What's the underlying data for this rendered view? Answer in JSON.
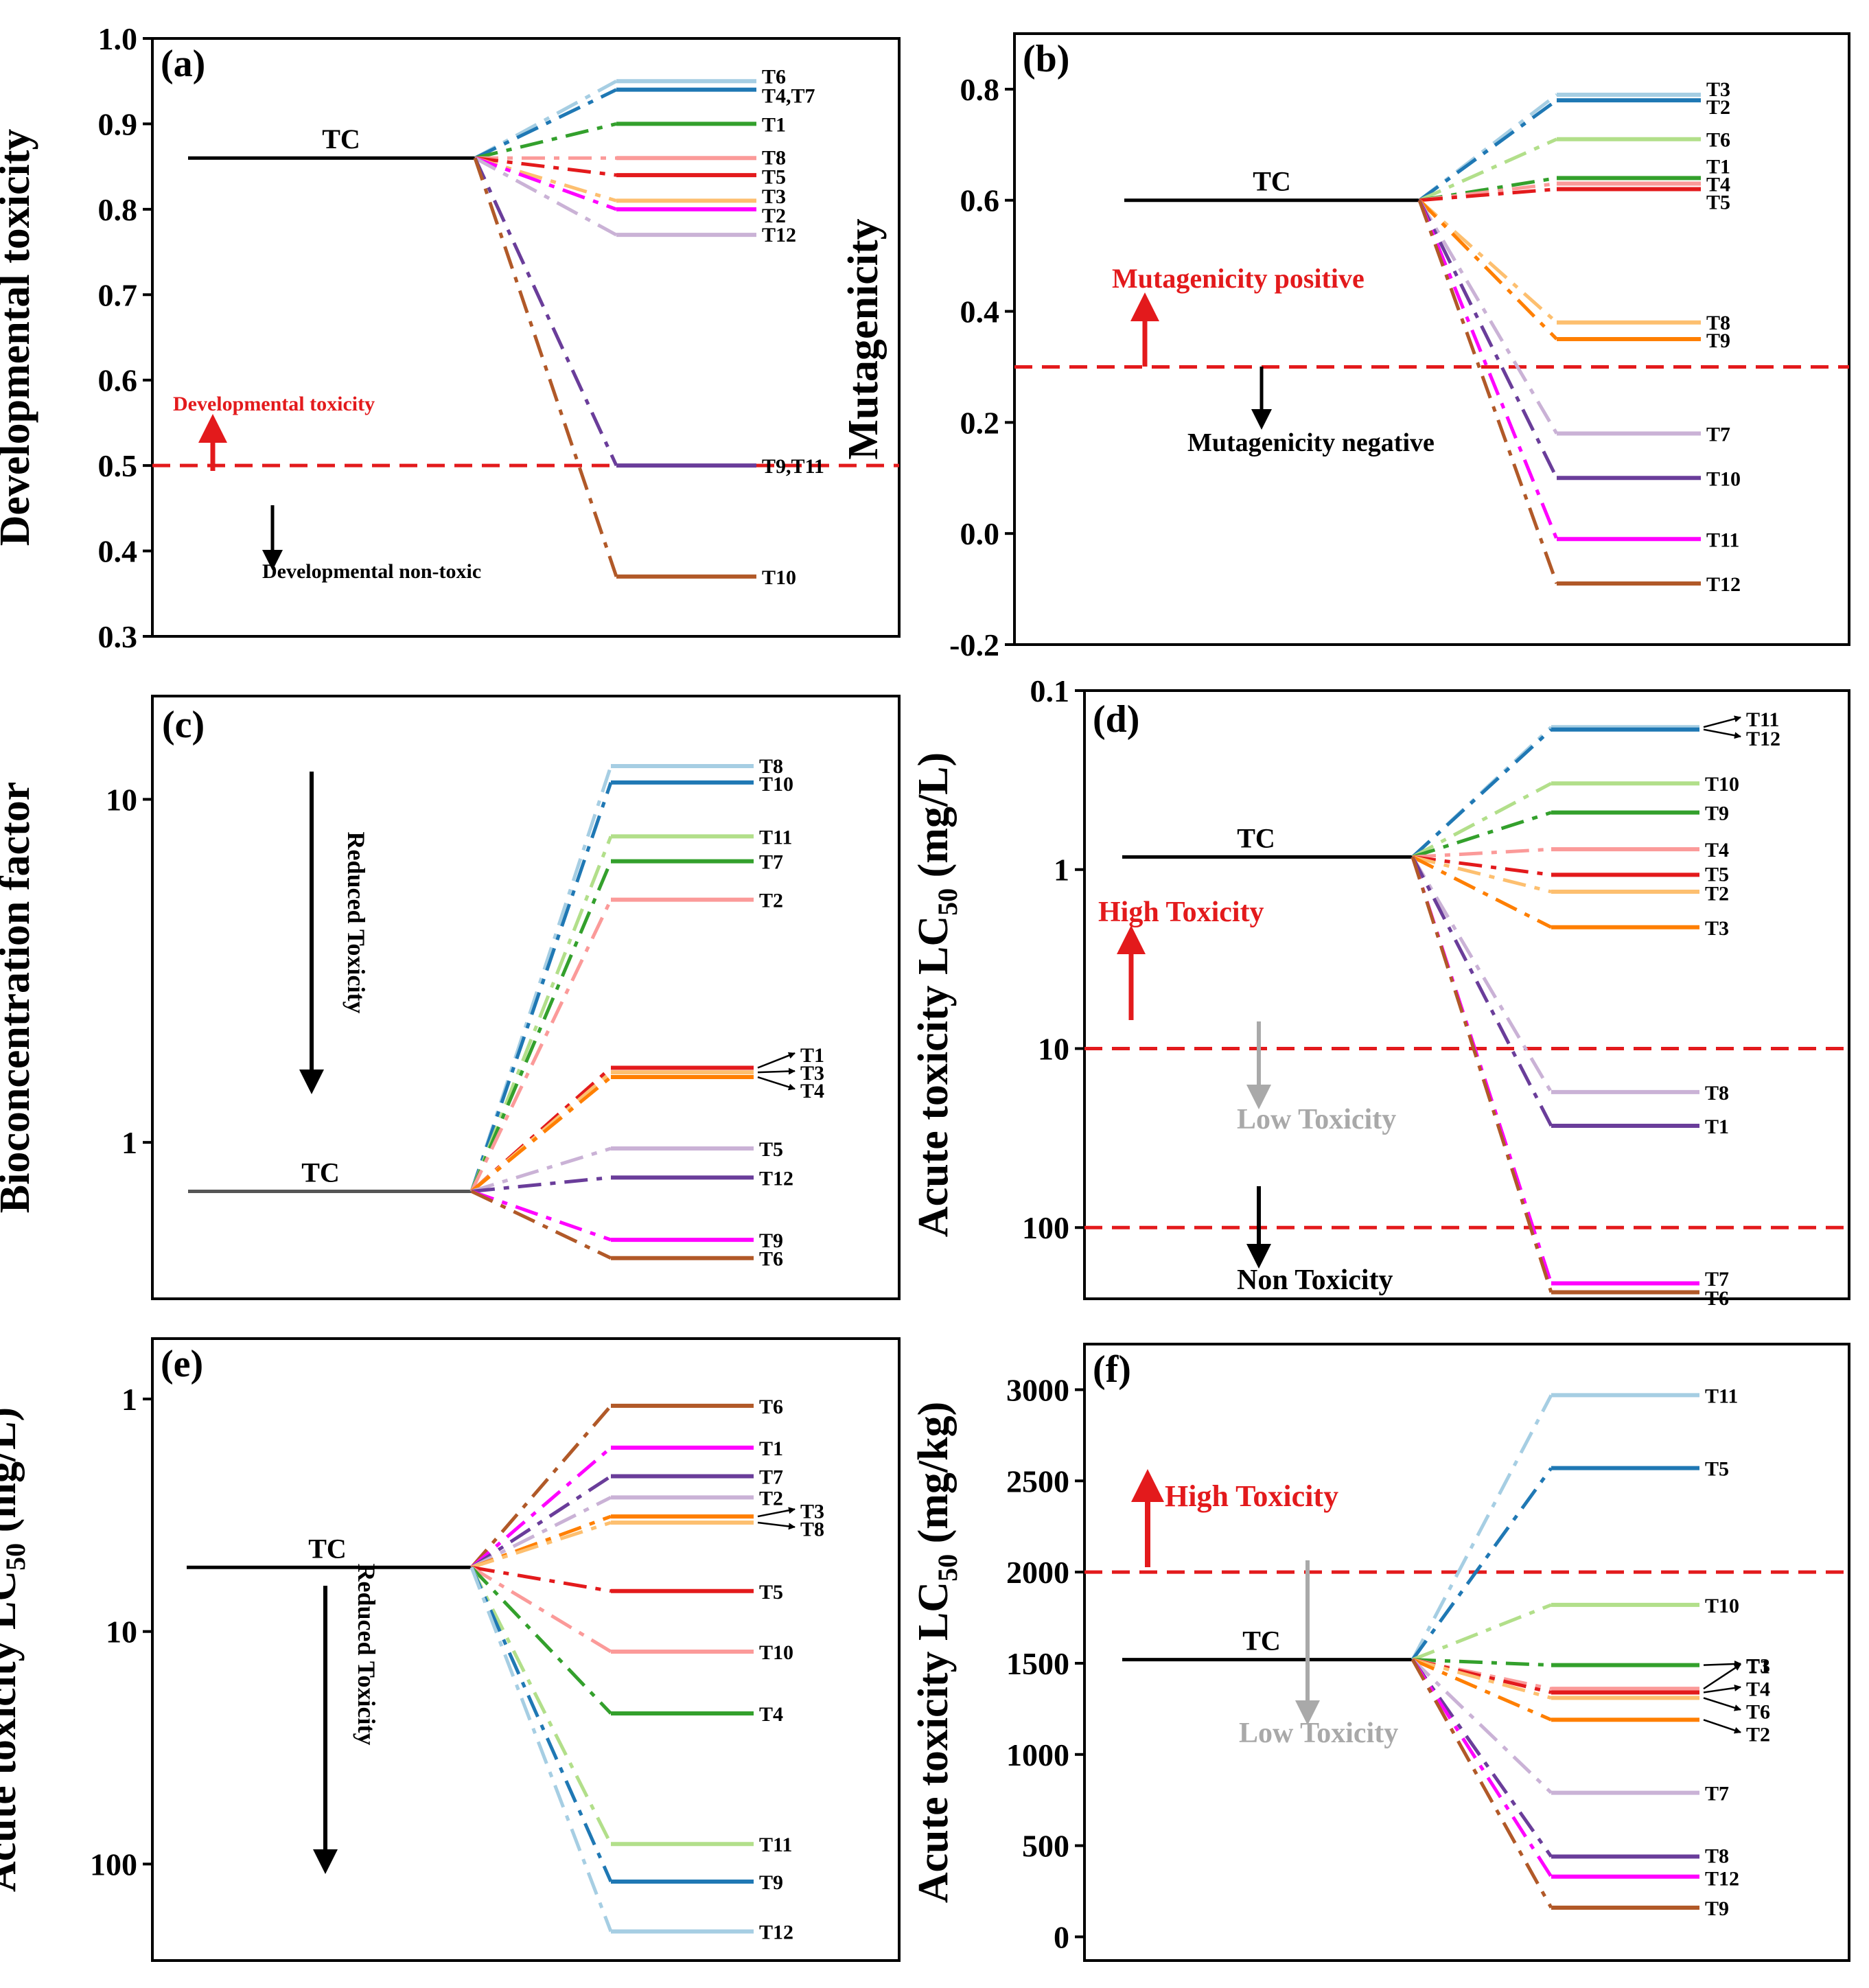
{
  "chart_data": [
    {
      "id": "a",
      "type": "line",
      "panel_label": "(a)",
      "ylabel": "Developmental toxicity",
      "scale": "linear",
      "ylim": [
        0.3,
        1.0
      ],
      "yticks": [
        0.3,
        0.4,
        0.5,
        0.6,
        0.7,
        0.8,
        0.9,
        1.0
      ],
      "ytick_labels": [
        "0.3",
        "0.4",
        "0.5",
        "0.6",
        "0.7",
        "0.8",
        "0.9",
        "1.0"
      ],
      "tc": {
        "label": "TC",
        "value": 0.86
      },
      "series": [
        {
          "name": "T6",
          "value": 0.95,
          "color": "#a6cee3"
        },
        {
          "name": "T4,T7",
          "value": 0.94,
          "color": "#1f78b4"
        },
        {
          "name": "T1",
          "value": 0.9,
          "color": "#33a02c"
        },
        {
          "name": "T8",
          "value": 0.86,
          "color": "#fb9a99"
        },
        {
          "name": "T5",
          "value": 0.84,
          "color": "#e31a1c"
        },
        {
          "name": "T3",
          "value": 0.81,
          "color": "#fdbf6f"
        },
        {
          "name": "T2",
          "value": 0.8,
          "color": "#ff00ff"
        },
        {
          "name": "T12",
          "value": 0.77,
          "color": "#cab2d6"
        },
        {
          "name": "T9,T11",
          "value": 0.5,
          "color": "#6a3d9a"
        },
        {
          "name": "T10",
          "value": 0.37,
          "color": "#b15928"
        }
      ],
      "thresholds": [
        0.5
      ],
      "annotations": [
        {
          "text": "Developmental toxicity",
          "color": "#e31a1c",
          "arrow": "up"
        },
        {
          "text": "Developmental non-toxic",
          "color": "#000000",
          "arrow": "down"
        }
      ]
    },
    {
      "id": "b",
      "type": "line",
      "panel_label": "(b)",
      "ylabel": "Mutagenicity",
      "scale": "linear",
      "ylim": [
        -0.2,
        0.9
      ],
      "yticks": [
        -0.2,
        0.0,
        0.2,
        0.4,
        0.6,
        0.8
      ],
      "ytick_labels": [
        "-0.2",
        "0.0",
        "0.2",
        "0.4",
        "0.6",
        "0.8"
      ],
      "tc": {
        "label": "TC",
        "value": 0.6
      },
      "series": [
        {
          "name": "T3",
          "value": 0.79,
          "color": "#a6cee3"
        },
        {
          "name": "T2",
          "value": 0.78,
          "color": "#1f78b4"
        },
        {
          "name": "T6",
          "value": 0.71,
          "color": "#b2df8a"
        },
        {
          "name": "T1",
          "value": 0.64,
          "color": "#33a02c"
        },
        {
          "name": "T4",
          "value": 0.63,
          "color": "#fb9a99"
        },
        {
          "name": "T5",
          "value": 0.62,
          "color": "#e31a1c"
        },
        {
          "name": "T8",
          "value": 0.38,
          "color": "#fdbf6f"
        },
        {
          "name": "T9",
          "value": 0.35,
          "color": "#ff7f00"
        },
        {
          "name": "T7",
          "value": 0.18,
          "color": "#cab2d6"
        },
        {
          "name": "T10",
          "value": 0.1,
          "color": "#6a3d9a"
        },
        {
          "name": "T11",
          "value": -0.01,
          "color": "#ff00ff"
        },
        {
          "name": "T12",
          "value": -0.09,
          "color": "#b15928"
        }
      ],
      "thresholds": [
        0.3
      ],
      "annotations": [
        {
          "text": "Mutagenicity positive",
          "color": "#e31a1c",
          "arrow": "up"
        },
        {
          "text": "Mutagenicity negative",
          "color": "#000000",
          "arrow": "down"
        }
      ]
    },
    {
      "id": "c",
      "type": "line",
      "panel_label": "(c)",
      "ylabel": "Bioconcentration factor",
      "scale": "log",
      "ylim": [
        0.35,
        20
      ],
      "yticks": [
        1,
        10
      ],
      "ytick_labels": [
        "1",
        "10"
      ],
      "tc": {
        "label": "TC",
        "value": 0.72
      },
      "series": [
        {
          "name": "T8",
          "value": 12.5,
          "color": "#a6cee3"
        },
        {
          "name": "T10",
          "value": 11.2,
          "color": "#1f78b4"
        },
        {
          "name": "T11",
          "value": 7.8,
          "color": "#b2df8a"
        },
        {
          "name": "T7",
          "value": 6.6,
          "color": "#33a02c"
        },
        {
          "name": "T2",
          "value": 5.1,
          "color": "#fb9a99"
        },
        {
          "name": "T1",
          "value": 1.65,
          "color": "#e31a1c"
        },
        {
          "name": "T3",
          "value": 1.6,
          "color": "#fdbf6f"
        },
        {
          "name": "T4",
          "value": 1.55,
          "color": "#ff7f00"
        },
        {
          "name": "T5",
          "value": 0.96,
          "color": "#cab2d6"
        },
        {
          "name": "T12",
          "value": 0.79,
          "color": "#6a3d9a"
        },
        {
          "name": "T9",
          "value": 0.52,
          "color": "#ff00ff"
        },
        {
          "name": "T6",
          "value": 0.46,
          "color": "#b15928"
        }
      ],
      "thresholds": [],
      "annotations": [
        {
          "text": "Reduced Toxicity",
          "color": "#000000",
          "arrow": "down"
        }
      ]
    },
    {
      "id": "d",
      "type": "line",
      "panel_label": "(d)",
      "ylabel": "Acute toxicity LC",
      "ylabel_sub": "50",
      "ylabel_unit": " (mg/L)",
      "scale": "log",
      "inverted": true,
      "ylim": [
        0.1,
        250
      ],
      "yticks": [
        0.1,
        1,
        10,
        100
      ],
      "ytick_labels": [
        "0.1",
        "1",
        "10",
        "100"
      ],
      "tc": {
        "label": "TC",
        "value": 0.85
      },
      "series": [
        {
          "name": "T11",
          "value": 0.16,
          "color": "#a6cee3"
        },
        {
          "name": "T12",
          "value": 0.165,
          "color": "#1f78b4"
        },
        {
          "name": "T10",
          "value": 0.33,
          "color": "#b2df8a"
        },
        {
          "name": "T9",
          "value": 0.48,
          "color": "#33a02c"
        },
        {
          "name": "T4",
          "value": 0.77,
          "color": "#fb9a99"
        },
        {
          "name": "T5",
          "value": 1.07,
          "color": "#e31a1c"
        },
        {
          "name": "T2",
          "value": 1.33,
          "color": "#fdbf6f"
        },
        {
          "name": "T3",
          "value": 2.1,
          "color": "#ff7f00"
        },
        {
          "name": "T8",
          "value": 17.5,
          "color": "#cab2d6"
        },
        {
          "name": "T1",
          "value": 27,
          "color": "#6a3d9a"
        },
        {
          "name": "T7",
          "value": 205,
          "color": "#ff00ff"
        },
        {
          "name": "T6",
          "value": 230,
          "color": "#b15928"
        }
      ],
      "thresholds": [
        10,
        100
      ],
      "annotations": [
        {
          "text": "High Toxicity",
          "color": "#e31a1c",
          "arrow": "up"
        },
        {
          "text": "Low Toxicity",
          "color": "#a9a9a9",
          "arrow": "down"
        },
        {
          "text": "Non Toxicity",
          "color": "#000000",
          "arrow": "down"
        }
      ]
    },
    {
      "id": "e",
      "type": "line",
      "panel_label": "(e)",
      "ylabel": "Acute toxicity LC",
      "ylabel_sub": "50",
      "ylabel_unit": " (mg/L)",
      "scale": "log",
      "inverted": true,
      "ylim": [
        0.55,
        260
      ],
      "yticks": [
        1,
        10,
        100
      ],
      "ytick_labels": [
        "1",
        "10",
        "100"
      ],
      "tc": {
        "label": "TC",
        "value": 5.3
      },
      "series": [
        {
          "name": "T6",
          "value": 1.07,
          "color": "#b15928"
        },
        {
          "name": "T1",
          "value": 1.62,
          "color": "#ff00ff"
        },
        {
          "name": "T7",
          "value": 2.15,
          "color": "#6a3d9a"
        },
        {
          "name": "T2",
          "value": 2.65,
          "color": "#cab2d6"
        },
        {
          "name": "T3",
          "value": 3.2,
          "color": "#ff7f00"
        },
        {
          "name": "T8",
          "value": 3.4,
          "color": "#fdbf6f"
        },
        {
          "name": "T5",
          "value": 6.7,
          "color": "#e31a1c"
        },
        {
          "name": "T10",
          "value": 12.2,
          "color": "#fb9a99"
        },
        {
          "name": "T4",
          "value": 22.5,
          "color": "#33a02c"
        },
        {
          "name": "T11",
          "value": 82,
          "color": "#b2df8a"
        },
        {
          "name": "T9",
          "value": 119,
          "color": "#1f78b4"
        },
        {
          "name": "T12",
          "value": 195,
          "color": "#a6cee3"
        }
      ],
      "thresholds": [],
      "annotations": [
        {
          "text": "Reduced Toxicity",
          "color": "#000000",
          "arrow": "down"
        }
      ]
    },
    {
      "id": "f",
      "type": "line",
      "panel_label": "(f)",
      "ylabel": "Acute toxicity LC",
      "ylabel_sub": "50",
      "ylabel_unit": " (mg/kg)",
      "scale": "linear",
      "ylim": [
        -130,
        3250
      ],
      "yticks": [
        0,
        500,
        1000,
        1500,
        2000,
        2500,
        3000
      ],
      "ytick_labels": [
        "0",
        "500",
        "1000",
        "1500",
        "2000",
        "2500",
        "3000"
      ],
      "tc": {
        "label": "TC",
        "value": 1520
      },
      "series": [
        {
          "name": "T11",
          "value": 2970,
          "color": "#a6cee3"
        },
        {
          "name": "T5",
          "value": 2570,
          "color": "#1f78b4"
        },
        {
          "name": "T10",
          "value": 1820,
          "color": "#b2df8a"
        },
        {
          "name": "T3",
          "value": 1490,
          "color": "#33a02c"
        },
        {
          "name": "T1",
          "value": 1360,
          "color": "#fb9a99"
        },
        {
          "name": "T4",
          "value": 1340,
          "color": "#e31a1c"
        },
        {
          "name": "T6",
          "value": 1310,
          "color": "#fdbf6f"
        },
        {
          "name": "T2",
          "value": 1190,
          "color": "#ff7f00"
        },
        {
          "name": "T7",
          "value": 790,
          "color": "#cab2d6"
        },
        {
          "name": "T8",
          "value": 440,
          "color": "#6a3d9a"
        },
        {
          "name": "T12",
          "value": 330,
          "color": "#ff00ff"
        },
        {
          "name": "T9",
          "value": 160,
          "color": "#b15928"
        }
      ],
      "thresholds": [
        2000
      ],
      "annotations": [
        {
          "text": "High Toxicity",
          "color": "#e31a1c",
          "arrow": "up"
        },
        {
          "text": "Low Toxicity",
          "color": "#a9a9a9",
          "arrow": "down"
        }
      ]
    }
  ]
}
